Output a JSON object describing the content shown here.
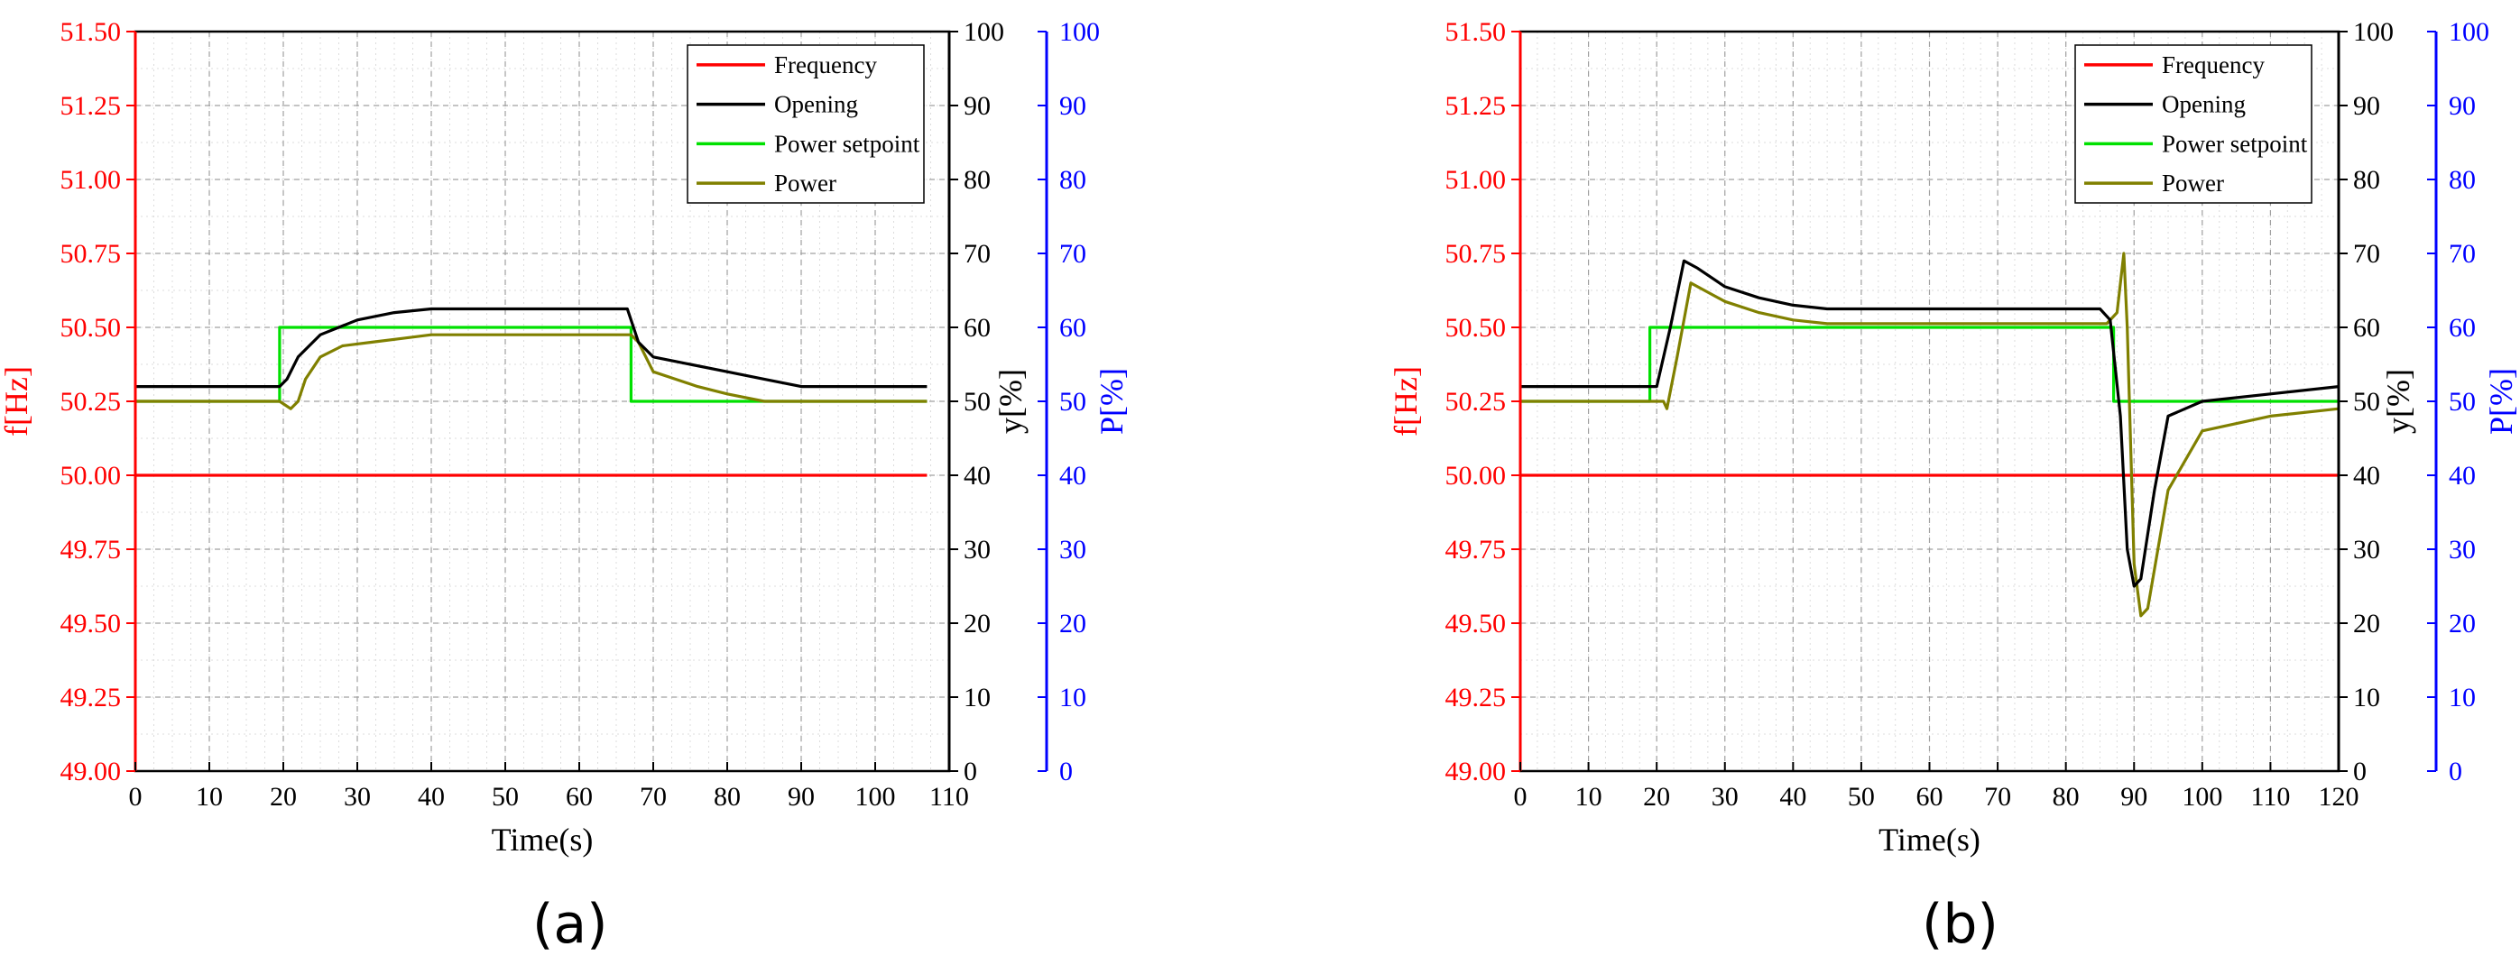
{
  "colors": {
    "frequency": "#ff0000",
    "opening": "#000000",
    "power_setpoint": "#00e000",
    "power": "#808000",
    "left_axis": "#ff0000",
    "right_axis_y": "#000000",
    "right_axis_p": "#0000ff"
  },
  "captions": [
    "(a)",
    "(b)"
  ],
  "chart_data": [
    {
      "type": "line",
      "xlabel": "Time(s)",
      "ylabel_left": "f[Hz]",
      "ylabel_right1": "y[%]",
      "ylabel_right2": "P[%]",
      "xlim": [
        0,
        110
      ],
      "xticks": [
        0,
        10,
        20,
        30,
        40,
        50,
        60,
        70,
        80,
        90,
        100,
        110
      ],
      "ylim_left": [
        49.0,
        51.5
      ],
      "yticks_left": [
        "51.50",
        "51.25",
        "51.00",
        "50.75",
        "50.50",
        "50.25",
        "50.00",
        "49.75",
        "49.50",
        "49.25",
        "49.00"
      ],
      "ylim_right": [
        0,
        100
      ],
      "yticks_right": [
        "100",
        "90",
        "80",
        "70",
        "60",
        "50",
        "40",
        "30",
        "20",
        "10",
        "0"
      ],
      "grid": true,
      "legend_position": "top-right",
      "series": [
        {
          "name": "Frequency",
          "axis": "left",
          "x": [
            0,
            107
          ],
          "values": [
            50.0,
            50.0
          ]
        },
        {
          "name": "Opening",
          "axis": "right",
          "x": [
            0,
            19.5,
            20.5,
            22,
            25,
            30,
            35,
            40,
            45,
            50,
            55,
            60,
            65,
            66.5,
            68,
            70,
            75,
            80,
            85,
            90,
            100,
            107
          ],
          "values": [
            52,
            52,
            53,
            56,
            59,
            61,
            62,
            62.5,
            62.5,
            62.5,
            62.5,
            62.5,
            62.5,
            62.5,
            58,
            56,
            55,
            54,
            53,
            52,
            52,
            52
          ]
        },
        {
          "name": "Power setpoint",
          "axis": "right",
          "x": [
            0,
            19.5,
            19.5,
            67,
            67,
            107
          ],
          "values": [
            50,
            50,
            60,
            60,
            50,
            50
          ]
        },
        {
          "name": "Power",
          "axis": "right",
          "x": [
            0,
            19.5,
            21,
            22,
            23,
            25,
            28,
            32,
            36,
            40,
            45,
            50,
            55,
            60,
            65,
            67,
            68,
            70,
            73,
            76,
            80,
            85,
            90,
            100,
            107
          ],
          "values": [
            50,
            50,
            49,
            50,
            53,
            56,
            57.5,
            58,
            58.5,
            59,
            59,
            59,
            59,
            59,
            59,
            59,
            58,
            54,
            53,
            52,
            51,
            50,
            50,
            50,
            50
          ]
        }
      ]
    },
    {
      "type": "line",
      "xlabel": "Time(s)",
      "ylabel_left": "f[Hz]",
      "ylabel_right1": "y[%]",
      "ylabel_right2": "P[%]",
      "xlim": [
        0,
        120
      ],
      "xticks": [
        0,
        10,
        20,
        30,
        40,
        50,
        60,
        70,
        80,
        90,
        100,
        110,
        120
      ],
      "ylim_left": [
        49.0,
        51.5
      ],
      "yticks_left": [
        "51.50",
        "51.25",
        "51.00",
        "50.75",
        "50.50",
        "50.25",
        "50.00",
        "49.75",
        "49.50",
        "49.25",
        "49.00"
      ],
      "ylim_right": [
        0,
        100
      ],
      "yticks_right": [
        "100",
        "90",
        "80",
        "70",
        "60",
        "50",
        "40",
        "30",
        "20",
        "10",
        "0"
      ],
      "grid": true,
      "legend_position": "top-right",
      "series": [
        {
          "name": "Frequency",
          "axis": "left",
          "x": [
            0,
            120
          ],
          "values": [
            50.0,
            50.0
          ]
        },
        {
          "name": "Opening",
          "axis": "right",
          "x": [
            0,
            19,
            20,
            22,
            24,
            26,
            30,
            35,
            40,
            45,
            50,
            60,
            70,
            80,
            85,
            86.5,
            88,
            89,
            90,
            91,
            93,
            95,
            100,
            110,
            120
          ],
          "values": [
            52,
            52,
            52,
            60,
            69,
            68,
            65.5,
            64,
            63,
            62.5,
            62.5,
            62.5,
            62.5,
            62.5,
            62.5,
            61,
            48,
            30,
            25,
            26,
            38,
            48,
            50,
            51,
            52
          ]
        },
        {
          "name": "Power setpoint",
          "axis": "right",
          "x": [
            0,
            19,
            19,
            87,
            87,
            120
          ],
          "values": [
            50,
            50,
            60,
            60,
            50,
            50
          ]
        },
        {
          "name": "Power",
          "axis": "right",
          "x": [
            0,
            21,
            21.5,
            23,
            25,
            27,
            30,
            35,
            40,
            45,
            50,
            60,
            70,
            80,
            86,
            87.5,
            88.5,
            89,
            90,
            91,
            92,
            95,
            100,
            110,
            120
          ],
          "values": [
            50,
            50,
            49,
            56,
            66,
            65,
            63.5,
            62,
            61,
            60.5,
            60.5,
            60.5,
            60.5,
            60.5,
            60.5,
            62,
            70,
            60,
            28,
            21,
            22,
            38,
            46,
            48,
            49
          ]
        }
      ]
    }
  ]
}
